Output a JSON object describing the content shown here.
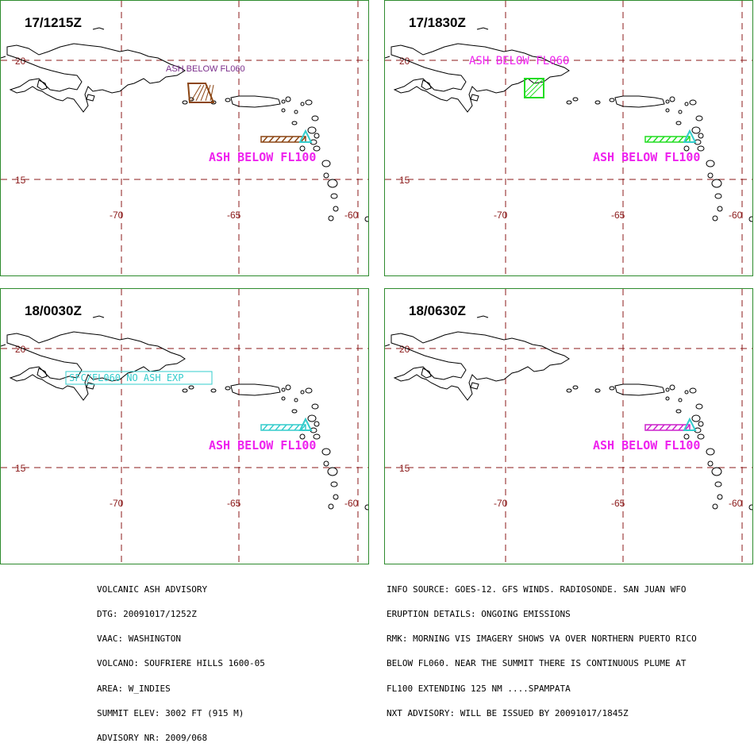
{
  "panels": [
    {
      "time": "17/1215Z",
      "labels": [
        "ASH BELOW FL060",
        "ASH BELOW FL100"
      ],
      "colors": [
        "#7a2e8b",
        "#ee22ee"
      ]
    },
    {
      "time": "17/1830Z",
      "labels": [
        "ASH BELOW FL060",
        "ASH BELOW FL100"
      ],
      "colors": [
        "#ee22ee",
        "#ee22ee"
      ]
    },
    {
      "time": "18/0030Z",
      "labels": [
        "SFC/FL060 NO ASH EXP",
        "ASH BELOW FL100"
      ],
      "colors": [
        "#33cccc",
        "#ee22ee"
      ]
    },
    {
      "time": "18/0630Z",
      "labels": [
        "",
        "ASH BELOW FL100"
      ],
      "colors": [
        "",
        "#ee22ee"
      ]
    }
  ],
  "grid": {
    "lat_labels": [
      "20",
      "15"
    ],
    "lon_labels": [
      "-70",
      "-65",
      "-60"
    ],
    "color": "#8b1a1a"
  },
  "advisory_left": [
    "VOLCANIC ASH ADVISORY",
    "DTG: 20091017/1252Z",
    "VAAC: WASHINGTON",
    "VOLCANO: SOUFRIERE HILLS 1600-05",
    "AREA: W_INDIES",
    "SUMMIT ELEV: 3002 FT (915 M)",
    "ADVISORY NR: 2009/068"
  ],
  "advisory_right": [
    "INFO SOURCE: GOES-12. GFS WINDS. RADIOSONDE. SAN JUAN WFO",
    "ERUPTION DETAILS: ONGOING EMISSIONS",
    "RMK: MORNING VIS IMAGERY SHOWS VA OVER NORTHERN PUERTO RICO",
    "BELOW FL060. NEAR THE SUMMIT THERE IS CONTINUOUS PLUME AT",
    "FL100 EXTENDING 125 NM ....SPAMPATA",
    "NXT ADVISORY: WILL BE ISSUED BY 20091017/1845Z"
  ],
  "ash_colors": {
    "fl060_p1": "#8b4513",
    "fl060_p2": "#22dd22",
    "fl100_p1": "#8b4513",
    "fl100_p2": "#22dd22",
    "fl100_p3": "#33cccc",
    "fl100_p4": "#cc22cc",
    "volcano": "#33cccc"
  }
}
